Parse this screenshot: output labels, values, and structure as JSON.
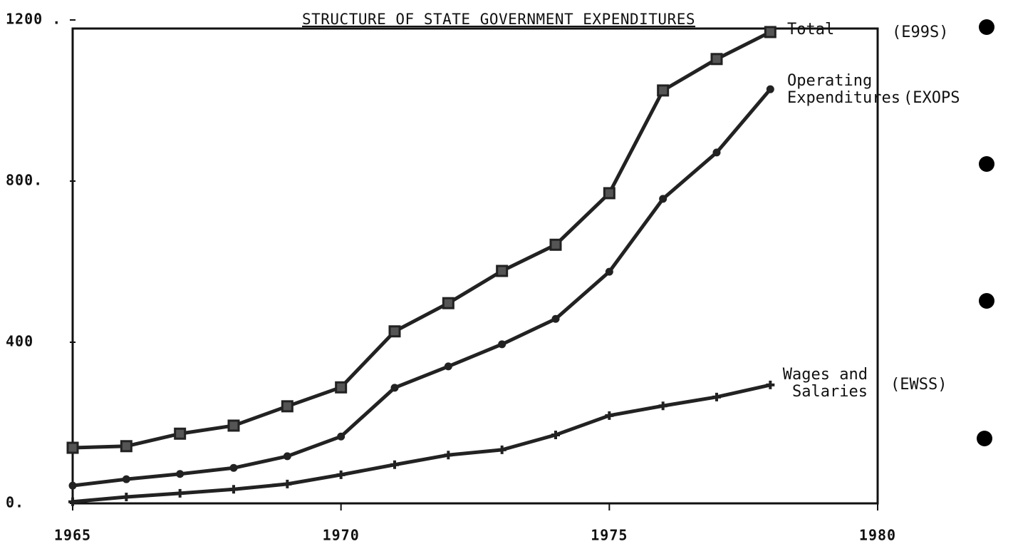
{
  "chart_data": {
    "type": "line",
    "title": "STRUCTURE OF STATE GOVERNMENT EXPENDITURES",
    "x": [
      1965,
      1966,
      1967,
      1968,
      1969,
      1970,
      1971,
      1972,
      1973,
      1974,
      1975,
      1976,
      1977,
      1978
    ],
    "series": [
      {
        "name": "Total",
        "code": "(E99S)",
        "color": "#222222",
        "marker": "square",
        "values": [
          138,
          142,
          173,
          193,
          241,
          288,
          427,
          497,
          577,
          642,
          770,
          1025,
          1103,
          1170
        ]
      },
      {
        "name": "Operating Expenditures",
        "code": "(EXOPS",
        "color": "#222222",
        "marker": "circle",
        "values": [
          44,
          60,
          73,
          88,
          117,
          166,
          287,
          340,
          395,
          458,
          575,
          756,
          871,
          1028
        ]
      },
      {
        "name": "Wages and Salaries",
        "code": "(EWSS)",
        "color": "#222222",
        "marker": "plus",
        "values": [
          4,
          16,
          25,
          35,
          48,
          71,
          96,
          120,
          133,
          170,
          218,
          242,
          264,
          294
        ]
      }
    ],
    "xlim": [
      1965,
      1980
    ],
    "xticks": [
      1965,
      1970,
      1975,
      1980
    ],
    "ylim": [
      0,
      1200
    ],
    "yticks": [
      {
        "value": 0,
        "label": "0."
      },
      400,
      {
        "value": 800,
        "label": "800."
      },
      {
        "value": 1200,
        "label": "1200 ."
      }
    ]
  }
}
